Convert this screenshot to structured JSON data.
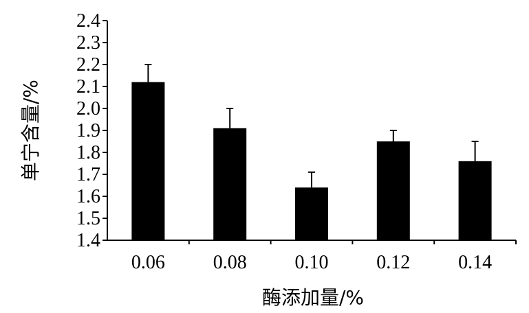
{
  "chart_data": {
    "type": "bar",
    "xlabel": "酶添加量/%",
    "ylabel": "单宁含量/%",
    "categories": [
      "0.06",
      "0.08",
      "0.10",
      "0.12",
      "0.14"
    ],
    "values": [
      2.12,
      1.91,
      1.64,
      1.85,
      1.76
    ],
    "error_upper": [
      2.2,
      2.0,
      1.71,
      1.9,
      1.85
    ],
    "ylim": [
      1.4,
      2.4
    ],
    "yticks": [
      "1.4",
      "1.5",
      "1.6",
      "1.7",
      "1.8",
      "1.9",
      "2.0",
      "2.1",
      "2.2",
      "2.3",
      "2.4"
    ],
    "grid": false,
    "bar_color": "#000000"
  }
}
